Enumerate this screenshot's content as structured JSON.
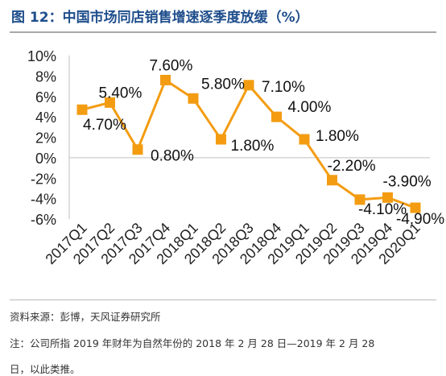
{
  "figure": {
    "title": "图 12：中国市场同店销售增速逐季度放缓（%）",
    "source": "资料来源：彭博，天风证券研究所",
    "note_line1": "注：公司所指 2019 年财年为自然年份的 2018 年 2 月 28 日—2019 年 2 月 28",
    "note_line2": "日，以此类推。"
  },
  "chart_data": {
    "type": "line",
    "title": "",
    "xlabel": "",
    "ylabel": "",
    "categories": [
      "2017Q1",
      "2017Q2",
      "2017Q3",
      "2017Q4",
      "2018Q1",
      "2018Q2",
      "2018Q3",
      "2018Q4",
      "2019Q1",
      "2019Q2",
      "2019Q3",
      "2019Q4",
      "2020Q1"
    ],
    "series": [
      {
        "values": [
          4.7,
          5.4,
          0.8,
          7.6,
          5.8,
          1.8,
          7.1,
          4.0,
          1.8,
          -2.2,
          -4.1,
          -3.9,
          -4.9
        ],
        "labels": [
          "4.70%",
          "5.40%",
          "0.80%",
          "7.60%",
          "5.80%",
          "1.80%",
          "7.10%",
          "4.00%",
          "1.80%",
          "-2.20%",
          "-4.10%",
          "-3.90%",
          "-4.90%"
        ]
      }
    ],
    "ylim": [
      -6,
      10
    ],
    "yticks": [
      10,
      8,
      6,
      4,
      2,
      0,
      -2,
      -4,
      -6
    ],
    "ytick_labels": [
      "10%",
      "8%",
      "6%",
      "4%",
      "2%",
      "0%",
      "-2%",
      "-4%",
      "-6%"
    ],
    "grid": false,
    "legend": "none",
    "color": "#f39c12"
  }
}
